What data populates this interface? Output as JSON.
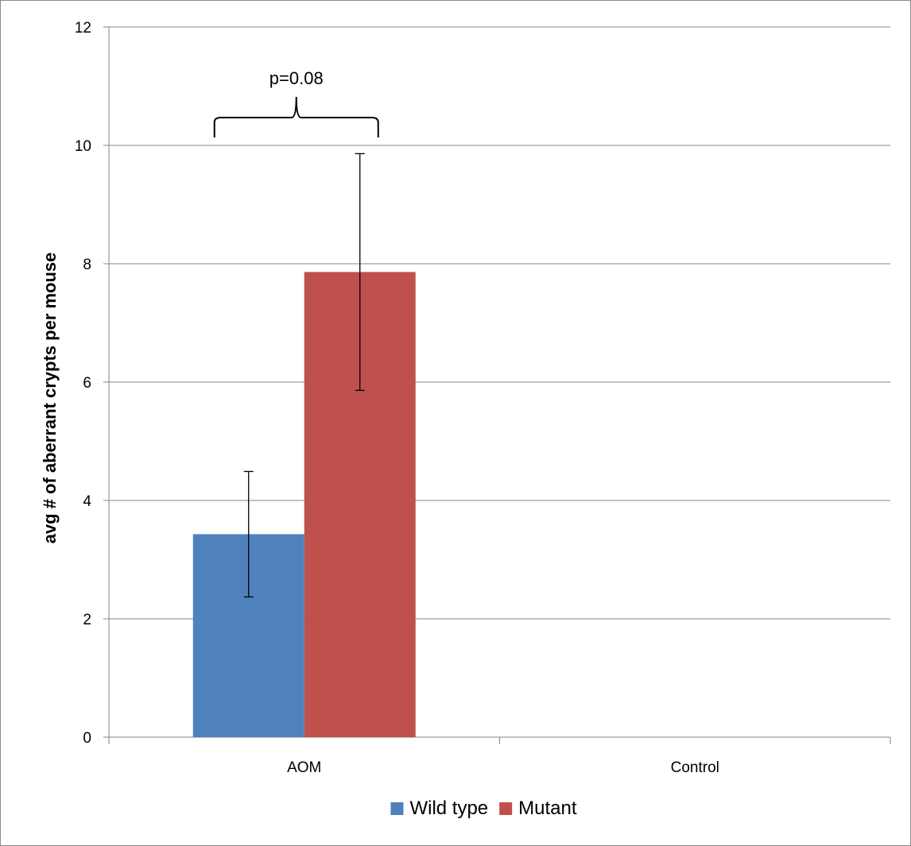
{
  "chart_data": {
    "type": "bar",
    "categories": [
      "AOM",
      "Control"
    ],
    "series": [
      {
        "name": "Wild type",
        "color": "#4f81bd",
        "values": [
          3.43,
          0
        ],
        "error": [
          1.06,
          0
        ]
      },
      {
        "name": "Mutant",
        "color": "#c0504d",
        "values": [
          7.86,
          0
        ],
        "error": [
          2.0,
          0
        ]
      }
    ],
    "title": "",
    "xlabel": "",
    "ylabel": "avg # of aberrant crypts per mouse",
    "ylim": [
      0,
      12
    ],
    "yticks": [
      "0",
      "2",
      "4",
      "6",
      "8",
      "10",
      "12"
    ],
    "grid": true,
    "legend_position": "bottom",
    "annotations": [
      {
        "text": "p=0.08",
        "category": "AOM",
        "type": "bracket"
      }
    ]
  }
}
